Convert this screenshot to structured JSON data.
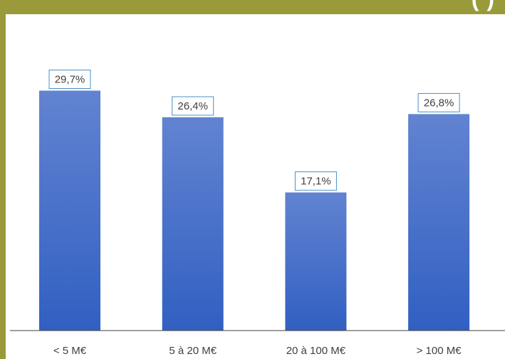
{
  "colors": {
    "frame": "#9a9a3a",
    "bar_top": "#6283d1",
    "bar_bottom": "#3160c2",
    "label_border": "#4a90c8",
    "axis": "#404040"
  },
  "header": {
    "title_fragment": "(  )"
  },
  "chart_data": {
    "type": "bar",
    "categories": [
      "< 5 M€",
      "5 à 20 M€",
      "20 à 100 M€",
      "> 100 M€"
    ],
    "values": [
      29.7,
      26.4,
      17.1,
      26.8
    ],
    "data_labels": [
      "29,7%",
      "26,4%",
      "17,1%",
      "26,8%"
    ],
    "title": "",
    "xlabel": "",
    "ylabel": "",
    "ylim": [
      0,
      33
    ],
    "grid": false,
    "legend": "none"
  }
}
